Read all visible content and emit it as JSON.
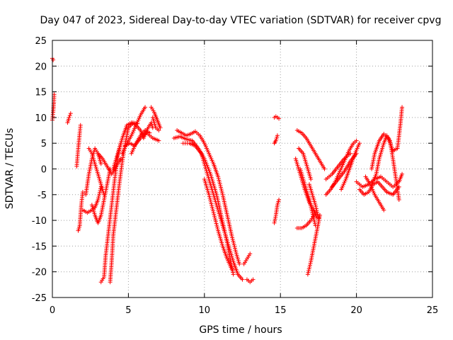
{
  "chart_data": {
    "type": "scatter",
    "title": "Day 047 of 2023, Sidereal Day-to-day VTEC variation (SDTVAR) for receiver cpvg",
    "xlabel": "GPS time / hours",
    "ylabel": "SDTVAR / TECUs",
    "xlim": [
      0,
      25
    ],
    "ylim": [
      -25,
      25
    ],
    "xticks": [
      0,
      5,
      10,
      15,
      20,
      25
    ],
    "yticks": [
      -25,
      -20,
      -15,
      -10,
      -5,
      0,
      5,
      10,
      15,
      20,
      25
    ],
    "grid": true,
    "marker": "+",
    "color": "#ff0000",
    "tracks": [
      [
        [
          0.0,
          21.5
        ],
        [
          0.05,
          21.2
        ]
      ],
      [
        [
          0.0,
          9.5
        ],
        [
          0.05,
          11.0
        ],
        [
          0.1,
          13.0
        ],
        [
          0.12,
          14.5
        ]
      ],
      [
        [
          1.0,
          9.0
        ],
        [
          1.1,
          10.0
        ],
        [
          1.2,
          10.8
        ]
      ],
      [
        [
          1.6,
          0.5
        ],
        [
          1.7,
          4.0
        ],
        [
          1.8,
          7.0
        ],
        [
          1.85,
          8.5
        ]
      ],
      [
        [
          1.7,
          -12.0
        ],
        [
          1.8,
          -11.0
        ],
        [
          1.9,
          -7.0
        ],
        [
          2.0,
          -4.5
        ]
      ],
      [
        [
          2.0,
          -8.0
        ],
        [
          2.3,
          -8.5
        ],
        [
          2.6,
          -8.0
        ],
        [
          2.8,
          -7.5
        ],
        [
          3.0,
          -6.0
        ],
        [
          3.2,
          -3.5
        ]
      ],
      [
        [
          2.2,
          -5.0
        ],
        [
          2.4,
          -1.0
        ],
        [
          2.6,
          2.0
        ],
        [
          2.8,
          4.0
        ],
        [
          3.0,
          3.0
        ],
        [
          3.2,
          1.0
        ]
      ],
      [
        [
          2.4,
          4.0
        ],
        [
          2.6,
          3.0
        ],
        [
          2.8,
          1.0
        ],
        [
          3.0,
          -1.0
        ],
        [
          3.2,
          -3.0
        ],
        [
          3.4,
          -5.0
        ]
      ],
      [
        [
          2.6,
          -7.0
        ],
        [
          2.8,
          -9.0
        ],
        [
          3.0,
          -10.5
        ],
        [
          3.2,
          -9.0
        ],
        [
          3.4,
          -6.0
        ],
        [
          3.6,
          -3.0
        ],
        [
          3.8,
          0.0
        ]
      ],
      [
        [
          3.0,
          3.0
        ],
        [
          3.3,
          2.0
        ],
        [
          3.6,
          0.5
        ],
        [
          3.9,
          -1.0
        ],
        [
          4.2,
          0.5
        ],
        [
          4.5,
          2.0
        ]
      ],
      [
        [
          3.2,
          -22.0
        ],
        [
          3.4,
          -21.0
        ],
        [
          3.5,
          -17.0
        ],
        [
          3.7,
          -12.0
        ],
        [
          3.9,
          -7.0
        ],
        [
          4.1,
          -2.0
        ],
        [
          4.3,
          2.5
        ],
        [
          4.5,
          5.0
        ]
      ],
      [
        [
          3.8,
          -22.0
        ],
        [
          3.9,
          -18.0
        ],
        [
          4.0,
          -13.0
        ],
        [
          4.2,
          -8.0
        ],
        [
          4.4,
          -3.0
        ],
        [
          4.6,
          1.5
        ],
        [
          4.8,
          5.0
        ],
        [
          5.0,
          8.0
        ],
        [
          5.3,
          9.0
        ],
        [
          5.6,
          8.8
        ]
      ],
      [
        [
          4.0,
          0.0
        ],
        [
          4.3,
          3.0
        ],
        [
          4.6,
          6.0
        ],
        [
          4.9,
          8.5
        ],
        [
          5.2,
          9.0
        ],
        [
          5.5,
          8.5
        ],
        [
          5.8,
          7.5
        ],
        [
          6.0,
          6.0
        ],
        [
          6.2,
          7.5
        ],
        [
          6.5,
          9.0
        ],
        [
          6.6,
          8.0
        ]
      ],
      [
        [
          4.6,
          3.0
        ],
        [
          4.9,
          5.0
        ],
        [
          5.2,
          6.5
        ],
        [
          5.5,
          8.5
        ],
        [
          5.8,
          10.5
        ],
        [
          6.1,
          12.0
        ]
      ],
      [
        [
          4.8,
          4.5
        ],
        [
          5.1,
          5.0
        ],
        [
          5.4,
          4.5
        ],
        [
          5.8,
          6.0
        ],
        [
          6.2,
          7.0
        ],
        [
          6.6,
          6.0
        ],
        [
          7.0,
          5.5
        ]
      ],
      [
        [
          5.2,
          3.0
        ],
        [
          5.5,
          5.0
        ],
        [
          5.8,
          6.5
        ],
        [
          6.1,
          7.5
        ],
        [
          6.4,
          7.0
        ]
      ],
      [
        [
          6.5,
          12.0
        ],
        [
          6.7,
          11.0
        ],
        [
          6.9,
          9.5
        ],
        [
          7.1,
          8.0
        ]
      ],
      [
        [
          6.6,
          10.0
        ],
        [
          6.8,
          8.0
        ],
        [
          7.0,
          7.5
        ]
      ],
      [
        [
          8.2,
          7.5
        ],
        [
          8.5,
          7.0
        ],
        [
          8.8,
          6.5
        ],
        [
          9.1,
          6.8
        ],
        [
          9.4,
          7.3
        ],
        [
          9.7,
          6.5
        ],
        [
          10.0,
          5.0
        ],
        [
          10.3,
          3.0
        ],
        [
          10.6,
          1.0
        ],
        [
          10.9,
          -1.5
        ],
        [
          11.2,
          -5.0
        ],
        [
          11.5,
          -9.0
        ],
        [
          11.8,
          -13.0
        ],
        [
          12.1,
          -16.5
        ],
        [
          12.3,
          -18.5
        ]
      ],
      [
        [
          8.0,
          6.0
        ],
        [
          8.4,
          6.3
        ],
        [
          8.8,
          5.8
        ],
        [
          9.2,
          5.5
        ],
        [
          9.6,
          4.0
        ],
        [
          10.0,
          2.0
        ],
        [
          10.4,
          -1.0
        ],
        [
          10.8,
          -5.0
        ],
        [
          11.1,
          -9.0
        ],
        [
          11.4,
          -13.0
        ],
        [
          11.6,
          -16.0
        ],
        [
          11.8,
          -19.0
        ],
        [
          11.9,
          -20.5
        ]
      ],
      [
        [
          8.6,
          5.0
        ],
        [
          9.0,
          5.0
        ],
        [
          9.4,
          4.5
        ],
        [
          9.8,
          3.0
        ],
        [
          10.1,
          0.0
        ],
        [
          10.5,
          -4.0
        ],
        [
          10.9,
          -8.0
        ],
        [
          11.3,
          -12.0
        ],
        [
          11.6,
          -15.0
        ],
        [
          11.9,
          -18.0
        ],
        [
          12.2,
          -20.5
        ],
        [
          12.5,
          -21.5
        ]
      ],
      [
        [
          10.0,
          -2.0
        ],
        [
          10.3,
          -5.0
        ],
        [
          10.6,
          -8.5
        ],
        [
          10.9,
          -12.0
        ],
        [
          11.2,
          -15.0
        ],
        [
          11.5,
          -17.5
        ],
        [
          11.8,
          -19.5
        ]
      ],
      [
        [
          12.8,
          -21.5
        ],
        [
          13.0,
          -22.0
        ],
        [
          13.2,
          -21.5
        ]
      ],
      [
        [
          12.6,
          -18.5
        ],
        [
          12.8,
          -17.5
        ],
        [
          13.0,
          -16.5
        ]
      ],
      [
        [
          14.6,
          10.0
        ],
        [
          14.7,
          10.2
        ],
        [
          14.9,
          9.8
        ]
      ],
      [
        [
          14.6,
          5.0
        ],
        [
          14.7,
          5.5
        ],
        [
          14.8,
          6.5
        ]
      ],
      [
        [
          14.6,
          -10.5
        ],
        [
          14.7,
          -9.0
        ],
        [
          14.8,
          -7.0
        ],
        [
          14.9,
          -6.0
        ]
      ],
      [
        [
          16.1,
          7.5
        ],
        [
          16.4,
          7.0
        ],
        [
          16.7,
          6.0
        ],
        [
          17.0,
          4.5
        ],
        [
          17.3,
          3.0
        ],
        [
          17.6,
          1.5
        ],
        [
          17.9,
          0.0
        ]
      ],
      [
        [
          16.2,
          4.0
        ],
        [
          16.5,
          3.0
        ],
        [
          16.7,
          1.0
        ],
        [
          16.9,
          -1.0
        ],
        [
          17.0,
          -2.0
        ]
      ],
      [
        [
          16.0,
          2.0
        ],
        [
          16.3,
          -1.0
        ],
        [
          16.6,
          -4.0
        ],
        [
          16.9,
          -6.5
        ],
        [
          17.2,
          -8.0
        ],
        [
          17.4,
          -9.5
        ]
      ],
      [
        [
          16.1,
          -11.5
        ],
        [
          16.4,
          -11.5
        ],
        [
          16.7,
          -11.0
        ],
        [
          17.0,
          -10.0
        ],
        [
          17.2,
          -9.0
        ]
      ],
      [
        [
          16.3,
          0.0
        ],
        [
          16.6,
          -3.0
        ],
        [
          16.9,
          -6.0
        ],
        [
          17.1,
          -8.5
        ],
        [
          17.3,
          -11.0
        ]
      ],
      [
        [
          16.8,
          -20.5
        ],
        [
          17.0,
          -18.0
        ],
        [
          17.2,
          -15.0
        ],
        [
          17.4,
          -12.0
        ],
        [
          17.6,
          -9.0
        ]
      ],
      [
        [
          16.9,
          -3.0
        ],
        [
          17.1,
          -5.0
        ],
        [
          17.3,
          -7.0
        ],
        [
          17.5,
          -9.5
        ]
      ],
      [
        [
          18.0,
          -5.0
        ],
        [
          18.3,
          -4.0
        ],
        [
          18.6,
          -2.5
        ],
        [
          18.9,
          -0.5
        ],
        [
          19.2,
          1.5
        ],
        [
          19.5,
          3.5
        ],
        [
          19.8,
          5.0
        ],
        [
          20.0,
          5.5
        ]
      ],
      [
        [
          18.0,
          -2.0
        ],
        [
          18.4,
          -1.0
        ],
        [
          18.8,
          0.5
        ],
        [
          19.2,
          2.0
        ],
        [
          19.6,
          3.0
        ]
      ],
      [
        [
          18.4,
          -3.5
        ],
        [
          18.8,
          -2.0
        ],
        [
          19.2,
          -0.5
        ],
        [
          19.6,
          1.5
        ],
        [
          20.0,
          3.0
        ]
      ],
      [
        [
          19.0,
          -4.0
        ],
        [
          19.3,
          -2.0
        ],
        [
          19.6,
          0.5
        ],
        [
          19.9,
          3.0
        ],
        [
          20.2,
          5.0
        ]
      ],
      [
        [
          20.0,
          -2.5
        ],
        [
          20.4,
          -3.5
        ],
        [
          20.8,
          -3.0
        ],
        [
          21.2,
          -2.0
        ],
        [
          21.6,
          -1.5
        ],
        [
          22.0,
          -2.5
        ],
        [
          22.4,
          -3.5
        ],
        [
          22.8,
          -2.5
        ],
        [
          23.0,
          -1.0
        ]
      ],
      [
        [
          20.2,
          -4.0
        ],
        [
          20.5,
          -5.0
        ],
        [
          20.8,
          -4.5
        ],
        [
          21.1,
          -3.0
        ],
        [
          21.4,
          -2.5
        ],
        [
          21.7,
          -3.5
        ],
        [
          22.0,
          -4.5
        ],
        [
          22.4,
          -5.0
        ],
        [
          22.8,
          -3.5
        ]
      ],
      [
        [
          20.6,
          -1.5
        ],
        [
          20.9,
          -3.0
        ],
        [
          21.2,
          -5.0
        ],
        [
          21.5,
          -6.5
        ],
        [
          21.8,
          -8.0
        ]
      ],
      [
        [
          21.0,
          0.0
        ],
        [
          21.2,
          3.0
        ],
        [
          21.5,
          5.5
        ],
        [
          21.8,
          6.8
        ],
        [
          22.1,
          6.0
        ],
        [
          22.4,
          3.5
        ],
        [
          22.7,
          4.0
        ],
        [
          22.9,
          9.0
        ],
        [
          23.0,
          12.0
        ]
      ],
      [
        [
          21.0,
          -3.0
        ],
        [
          21.3,
          -1.0
        ],
        [
          21.5,
          2.0
        ],
        [
          21.8,
          5.0
        ],
        [
          22.0,
          6.5
        ],
        [
          22.2,
          5.5
        ],
        [
          22.4,
          2.0
        ],
        [
          22.6,
          -2.0
        ],
        [
          22.8,
          -6.0
        ]
      ]
    ]
  }
}
